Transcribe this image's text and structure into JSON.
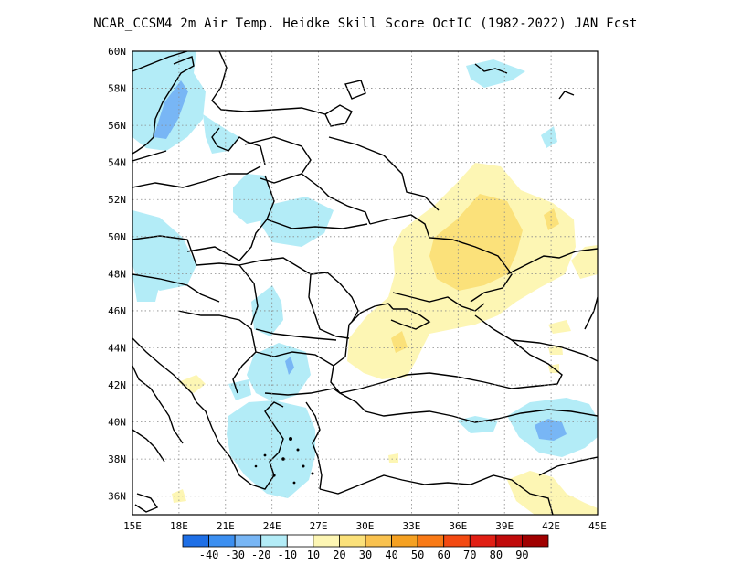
{
  "title": "NCAR_CCSM4  2m Air Temp. Heidke Skill Score OctIC (1982-2022) JAN Fcst",
  "map": {
    "lon_range": [
      15,
      45
    ],
    "lat_range": [
      35,
      60
    ],
    "lon_ticks": [
      "15E",
      "18E",
      "21E",
      "24E",
      "27E",
      "30E",
      "33E",
      "36E",
      "39E",
      "42E",
      "45E"
    ],
    "lat_ticks": [
      "36N",
      "38N",
      "40N",
      "42N",
      "44N",
      "46N",
      "48N",
      "50N",
      "52N",
      "54N",
      "56N",
      "58N",
      "60N"
    ],
    "grid": "dotted"
  },
  "colorbar": {
    "labels": [
      "-40",
      "-30",
      "-20",
      "-10",
      "10",
      "20",
      "30",
      "40",
      "50",
      "60",
      "70",
      "80",
      "90"
    ],
    "colors": [
      "#1e6fe6",
      "#3c8ff0",
      "#78b6f5",
      "#b3ecf7",
      "#ffffff",
      "#fdf6b4",
      "#fbe17a",
      "#f9c24f",
      "#f5a122",
      "#f97a16",
      "#f34a12",
      "#e11f14",
      "#c00a0a",
      "#a00000"
    ]
  },
  "fields": {
    "neg_light": "#b3ecf7",
    "neg_mid": "#78b6f5",
    "neg_dark": "#3c8ff0",
    "pos_light": "#fdf6b4",
    "pos_mid": "#fbe17a"
  }
}
